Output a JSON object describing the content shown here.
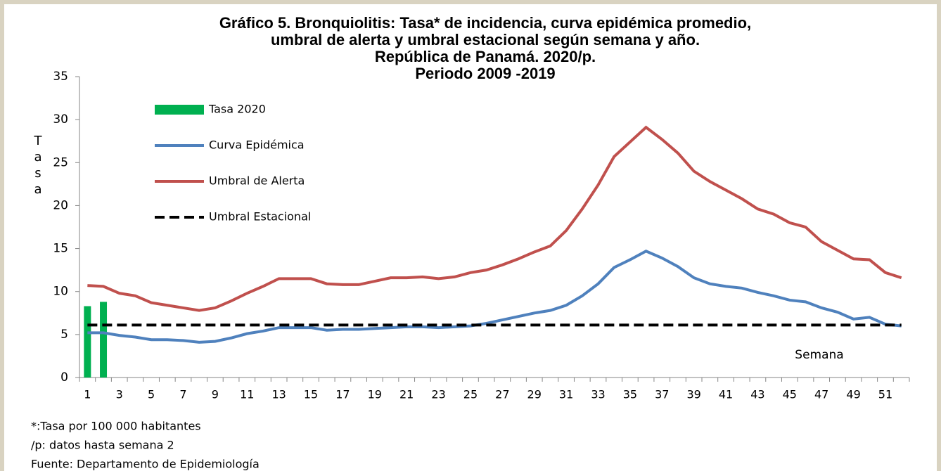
{
  "chart_data": {
    "type": "line",
    "title": [
      "Gráfico 5. Bronquiolitis: Tasa* de incidencia, curva epidémica promedio,",
      "umbral de alerta y umbral estacional según semana y año.",
      "República de Panamá. 2020/p.",
      "Periodo 2009 -2019"
    ],
    "ylabel": "Tasa",
    "xlabel": "Semana",
    "categories": [
      "1",
      null,
      "3",
      null,
      "5",
      null,
      "7",
      null,
      "9",
      null,
      "11",
      null,
      "13",
      null,
      "15",
      null,
      "17",
      null,
      "19",
      null,
      "21",
      null,
      "23",
      null,
      "25",
      null,
      "27",
      null,
      "29",
      null,
      "31",
      null,
      "33",
      null,
      "35",
      null,
      "37",
      null,
      "39",
      null,
      "41",
      null,
      "43",
      null,
      "45",
      null,
      "47",
      null,
      "49",
      null,
      "51",
      null
    ],
    "ylim": [
      0,
      35
    ],
    "yticks": [
      0,
      5,
      10,
      15,
      20,
      25,
      30,
      35
    ],
    "legend": "upper left",
    "series": [
      {
        "name": "Tasa 2020",
        "type": "bar",
        "color": "#00b050",
        "values": [
          8.3,
          8.8,
          null,
          null,
          null,
          null,
          null,
          null,
          null,
          null,
          null,
          null,
          null,
          null,
          null,
          null,
          null,
          null,
          null,
          null,
          null,
          null,
          null,
          null,
          null,
          null,
          null,
          null,
          null,
          null,
          null,
          null,
          null,
          null,
          null,
          null,
          null,
          null,
          null,
          null,
          null,
          null,
          null,
          null,
          null,
          null,
          null,
          null,
          null,
          null,
          null,
          null
        ]
      },
      {
        "name": "Curva Epidémica",
        "type": "line",
        "color": "#4f81bd",
        "values": [
          5.2,
          5.2,
          4.9,
          4.7,
          4.4,
          4.4,
          4.3,
          4.1,
          4.2,
          4.6,
          5.1,
          5.4,
          5.8,
          5.8,
          5.8,
          5.5,
          5.6,
          5.6,
          5.7,
          5.8,
          5.9,
          5.9,
          5.8,
          5.9,
          6.0,
          6.3,
          6.7,
          7.1,
          7.5,
          7.8,
          8.4,
          9.5,
          10.9,
          12.8,
          13.7,
          14.7,
          13.9,
          12.9,
          11.6,
          10.9,
          10.6,
          10.4,
          9.9,
          9.5,
          9.0,
          8.8,
          8.1,
          7.6,
          6.8,
          7.0,
          6.2,
          6.0
        ]
      },
      {
        "name": "Umbral de Alerta",
        "type": "line",
        "color": "#c0504d",
        "values": [
          10.7,
          10.6,
          9.8,
          9.5,
          8.7,
          8.4,
          8.1,
          7.8,
          8.1,
          8.9,
          9.8,
          10.6,
          11.5,
          11.5,
          11.5,
          10.9,
          10.8,
          10.8,
          11.2,
          11.6,
          11.6,
          11.7,
          11.5,
          11.7,
          12.2,
          12.5,
          13.1,
          13.8,
          14.6,
          15.3,
          17.1,
          19.6,
          22.4,
          25.7,
          27.4,
          29.1,
          27.7,
          26.1,
          24.0,
          22.8,
          21.8,
          20.8,
          19.6,
          19.0,
          18.0,
          17.5,
          15.8,
          14.8,
          13.8,
          13.7,
          12.2,
          11.6
        ]
      },
      {
        "name": "Umbral Estacional",
        "type": "line",
        "color": "#000000",
        "dashed": true,
        "values": [
          6.1,
          6.1,
          6.1,
          6.1,
          6.1,
          6.1,
          6.1,
          6.1,
          6.1,
          6.1,
          6.1,
          6.1,
          6.1,
          6.1,
          6.1,
          6.1,
          6.1,
          6.1,
          6.1,
          6.1,
          6.1,
          6.1,
          6.1,
          6.1,
          6.1,
          6.1,
          6.1,
          6.1,
          6.1,
          6.1,
          6.1,
          6.1,
          6.1,
          6.1,
          6.1,
          6.1,
          6.1,
          6.1,
          6.1,
          6.1,
          6.1,
          6.1,
          6.1,
          6.1,
          6.1,
          6.1,
          6.1,
          6.1,
          6.1,
          6.1,
          6.1,
          6.1
        ]
      }
    ],
    "notes": [
      "*:Tasa por 100 000 habitantes",
      "/p: datos hasta semana  2",
      "Fuente: Departamento de Epidemiología"
    ]
  }
}
